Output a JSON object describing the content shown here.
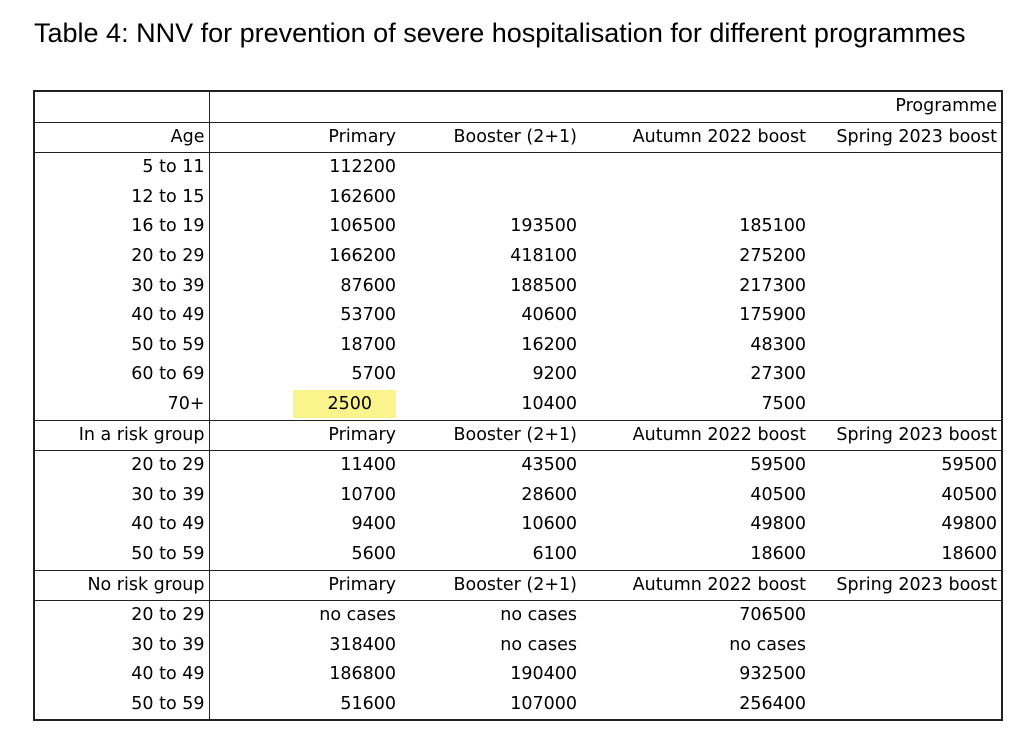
{
  "title": "Table 4: NNV for prevention of severe hospitalisation for different programmes",
  "programme_label": "Programme",
  "highlight_color": "#fbf48d",
  "sections": [
    {
      "header": [
        "Age",
        "Primary",
        "Booster (2+1)",
        "Autumn 2022 boost",
        "Spring 2023 boost"
      ],
      "rows": [
        [
          "5 to 11",
          "112200",
          "",
          "",
          ""
        ],
        [
          "12 to 15",
          "162600",
          "",
          "",
          ""
        ],
        [
          "16 to 19",
          "106500",
          "193500",
          "185100",
          ""
        ],
        [
          "20 to 29",
          "166200",
          "418100",
          "275200",
          ""
        ],
        [
          "30 to 39",
          "87600",
          "188500",
          "217300",
          ""
        ],
        [
          "40 to 49",
          "53700",
          "40600",
          "175900",
          ""
        ],
        [
          "50 to 59",
          "18700",
          "16200",
          "48300",
          ""
        ],
        [
          "60 to 69",
          "5700",
          "9200",
          "27300",
          ""
        ],
        [
          "70+",
          "2500",
          "10400",
          "7500",
          ""
        ]
      ]
    },
    {
      "header": [
        "In a risk group",
        "Primary",
        "Booster (2+1)",
        "Autumn 2022 boost",
        "Spring 2023 boost"
      ],
      "rows": [
        [
          "20 to 29",
          "11400",
          "43500",
          "59500",
          "59500"
        ],
        [
          "30 to 39",
          "10700",
          "28600",
          "40500",
          "40500"
        ],
        [
          "40 to 49",
          "9400",
          "10600",
          "49800",
          "49800"
        ],
        [
          "50 to 59",
          "5600",
          "6100",
          "18600",
          "18600"
        ]
      ]
    },
    {
      "header": [
        "No risk group",
        "Primary",
        "Booster (2+1)",
        "Autumn 2022 boost",
        "Spring 2023 boost"
      ],
      "rows": [
        [
          "20 to 29",
          "no cases",
          "no cases",
          "706500",
          ""
        ],
        [
          "30 to 39",
          "318400",
          "no cases",
          "no cases",
          ""
        ],
        [
          "40 to 49",
          "186800",
          "190400",
          "932500",
          ""
        ],
        [
          "50 to 59",
          "51600",
          "107000",
          "256400",
          ""
        ]
      ]
    }
  ],
  "highlighted_cell": {
    "section": 0,
    "row": 8,
    "col": 1
  }
}
